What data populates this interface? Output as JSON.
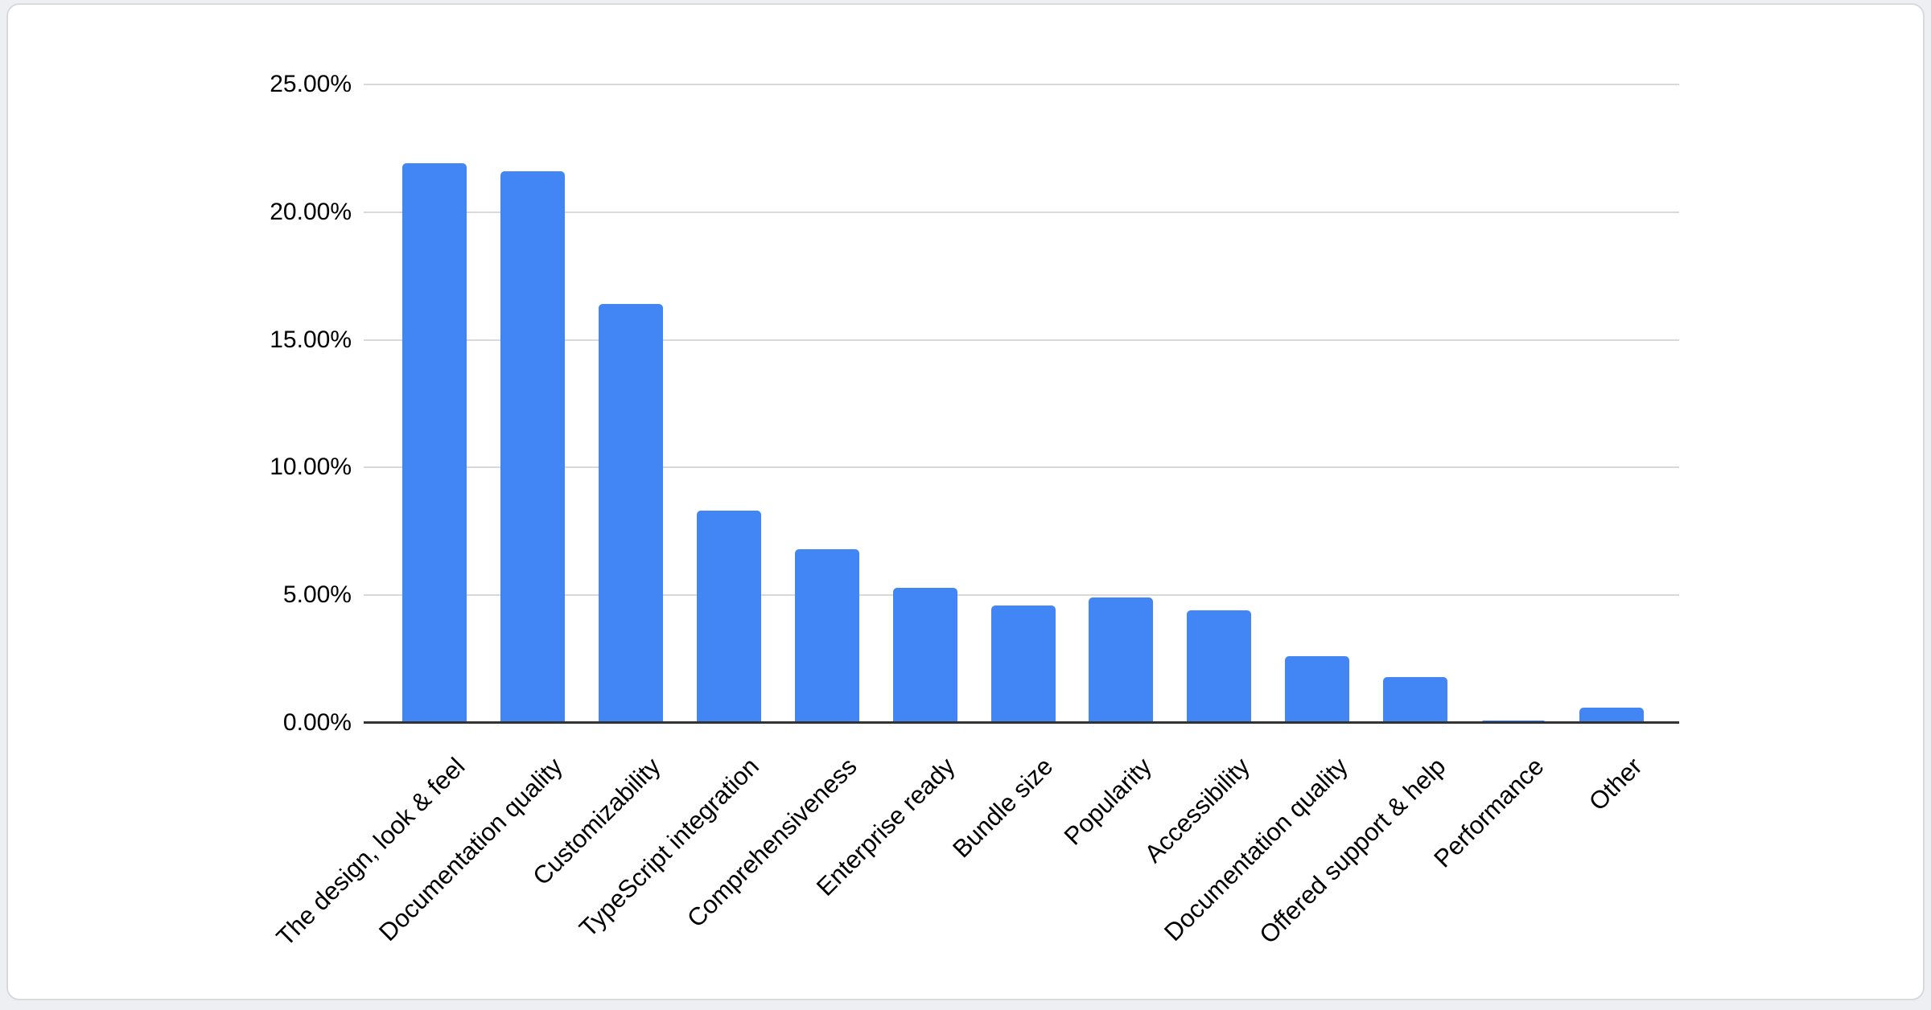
{
  "chart_data": {
    "type": "bar",
    "categories": [
      "The design, look & feel",
      "Documentation quality",
      "Customizability",
      "TypeScript integration",
      "Comprehensiveness",
      "Enterprise ready",
      "Bundle size",
      "Popularity",
      "Accessibility",
      "Documentation quality",
      "Offered support & help",
      "Performance",
      "Other"
    ],
    "values": [
      21.9,
      21.6,
      16.4,
      8.3,
      6.8,
      5.3,
      4.6,
      4.9,
      4.4,
      2.6,
      1.8,
      0.1,
      0.6
    ],
    "value_unit": "%",
    "ylim": [
      0,
      25
    ],
    "y_tick_step": 5,
    "y_ticks": [
      "0.00%",
      "5.00%",
      "10.00%",
      "15.00%",
      "20.00%",
      "25.00%"
    ],
    "grid": true,
    "legend": "none",
    "colors": {
      "bar": "#4285f4",
      "gridline": "#d9d9d9",
      "axis_line": "#333333",
      "label_text": "#000000",
      "card_background": "#ffffff",
      "card_border": "#d8dbde",
      "page_background": "#edeff2"
    }
  }
}
